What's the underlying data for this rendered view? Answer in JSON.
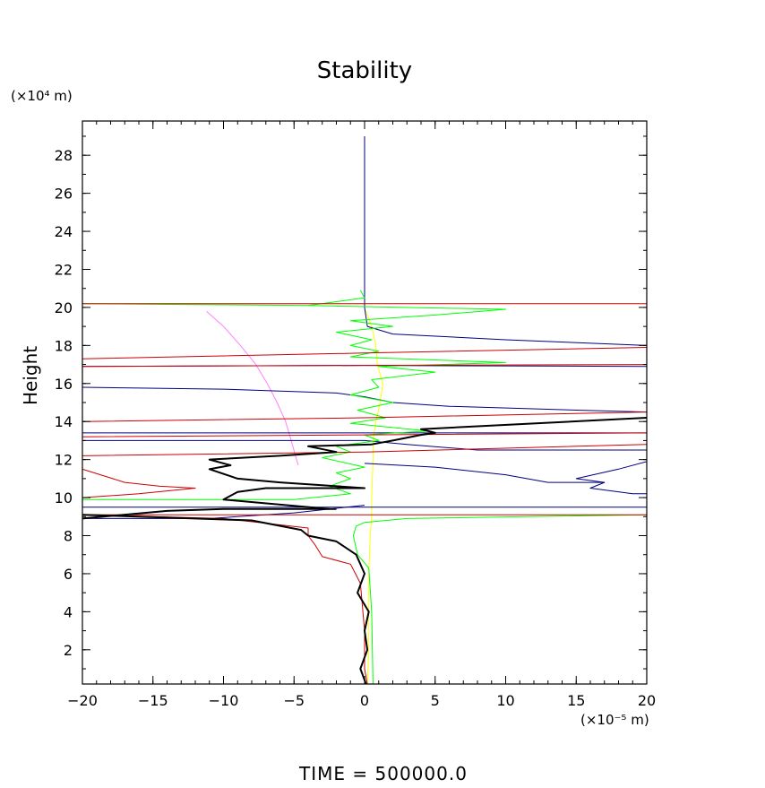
{
  "chart_data": {
    "type": "line",
    "title": "Stability",
    "ylabel": "Height",
    "y_scale_label": "(×10⁴ m)",
    "x_scale_label": "(×10⁻⁵ m)",
    "footer": "TIME  =  500000.0",
    "xlim": [
      -20,
      20
    ],
    "ylim": [
      0.2,
      29.8
    ],
    "xticks": [
      -20,
      -15,
      -10,
      -5,
      0,
      5,
      10,
      15,
      20
    ],
    "yticks": [
      2,
      4,
      6,
      8,
      10,
      12,
      14,
      16,
      18,
      20,
      22,
      24,
      26,
      28
    ],
    "grid": false,
    "series": [
      {
        "color": "#ff80ff",
        "width": 1,
        "points": [
          [
            -4.7,
            11.7
          ],
          [
            -4.9,
            12.2
          ],
          [
            -5.2,
            13
          ],
          [
            -5.6,
            14
          ],
          [
            -6.2,
            15
          ],
          [
            -6.9,
            16
          ],
          [
            -7.7,
            17
          ],
          [
            -8.8,
            18
          ],
          [
            -10,
            19
          ],
          [
            -11.2,
            19.8
          ]
        ]
      },
      {
        "color": "#ffff00",
        "width": 1,
        "points": [
          [
            0.2,
            0.2
          ],
          [
            0.3,
            2
          ],
          [
            0.3,
            4
          ],
          [
            0.3,
            6
          ],
          [
            0.4,
            8
          ],
          [
            0.5,
            9
          ],
          [
            0.5,
            10
          ],
          [
            0.6,
            12
          ],
          [
            0.6,
            13
          ],
          [
            0.8,
            14
          ],
          [
            1.1,
            15
          ],
          [
            1.3,
            16
          ],
          [
            0.9,
            17
          ],
          [
            0.8,
            18
          ],
          [
            0.5,
            19
          ],
          [
            0.1,
            19.8
          ]
        ]
      },
      {
        "color": "#000080",
        "width": 1,
        "points": [
          [
            0,
            29
          ],
          [
            0,
            20
          ],
          [
            0.2,
            19
          ],
          [
            2,
            18.6
          ],
          [
            10,
            18.3
          ],
          [
            20,
            18
          ]
        ]
      },
      {
        "color": "#000080",
        "width": 1,
        "points": [
          [
            -20,
            15.8
          ],
          [
            -10,
            15.7
          ],
          [
            -2,
            15.5
          ],
          [
            0,
            15.3
          ],
          [
            2,
            15
          ],
          [
            6,
            14.8
          ],
          [
            15,
            14.6
          ],
          [
            20,
            14.5
          ]
        ]
      },
      {
        "color": "#000080",
        "width": 1,
        "points": [
          [
            -20,
            13
          ],
          [
            -10,
            13
          ],
          [
            0,
            13
          ],
          [
            3,
            12.8
          ],
          [
            8,
            12.5
          ],
          [
            20,
            12.5
          ]
        ]
      },
      {
        "color": "#000080",
        "width": 1,
        "points": [
          [
            0,
            11.8
          ],
          [
            5,
            11.6
          ],
          [
            10,
            11.2
          ],
          [
            13,
            10.8
          ],
          [
            17,
            10.8
          ],
          [
            16,
            10.5
          ],
          [
            19,
            10.2
          ],
          [
            20,
            10.2
          ]
        ]
      },
      {
        "color": "#000080",
        "width": 1,
        "points": [
          [
            20,
            11.9
          ],
          [
            18,
            11.5
          ],
          [
            15,
            11
          ],
          [
            17,
            10.8
          ]
        ]
      },
      {
        "color": "#000080",
        "width": 1,
        "points": [
          [
            0,
            9.6
          ],
          [
            -5,
            9.2
          ],
          [
            -11,
            8.9
          ],
          [
            -20,
            8.9
          ]
        ]
      },
      {
        "color": "#000080",
        "width": 1,
        "points": [
          [
            -20,
            16.9
          ],
          [
            0,
            16.95
          ],
          [
            20,
            16.9
          ]
        ]
      },
      {
        "color": "#000080",
        "width": 1,
        "points": [
          [
            -20,
            13.4
          ],
          [
            0,
            13.4
          ],
          [
            20,
            13.4
          ]
        ]
      },
      {
        "color": "#000080",
        "width": 1,
        "points": [
          [
            -20,
            9.5
          ],
          [
            0,
            9.5
          ],
          [
            20,
            9.5
          ]
        ]
      },
      {
        "color": "#00ff00",
        "width": 1,
        "points": [
          [
            0.6,
            0.2
          ],
          [
            0.5,
            4
          ],
          [
            0.3,
            6.3
          ],
          [
            -0.5,
            7
          ],
          [
            -0.8,
            8
          ],
          [
            -0.6,
            8.5
          ],
          [
            0,
            8.7
          ],
          [
            3,
            8.9
          ],
          [
            20,
            9.1
          ]
        ]
      },
      {
        "color": "#00ff00",
        "width": 1,
        "points": [
          [
            -20,
            9.9
          ],
          [
            -5,
            9.9
          ],
          [
            -1,
            10.2
          ],
          [
            -2.5,
            10.6
          ],
          [
            -1,
            11
          ],
          [
            -2,
            11.3
          ],
          [
            0,
            11.6
          ],
          [
            -3,
            12.1
          ],
          [
            -1,
            12.4
          ],
          [
            -2,
            12.7
          ],
          [
            1,
            13
          ],
          [
            0,
            13.3
          ],
          [
            4.5,
            13.5
          ],
          [
            -1,
            13.9
          ],
          [
            1.5,
            14.2
          ],
          [
            -0.5,
            14.6
          ],
          [
            2,
            15
          ],
          [
            -1,
            15.4
          ],
          [
            1,
            15.8
          ],
          [
            0.5,
            16.2
          ],
          [
            5,
            16.6
          ],
          [
            1,
            16.9
          ],
          [
            10,
            17.1
          ],
          [
            -1,
            17.4
          ],
          [
            1,
            17.7
          ],
          [
            -1,
            18
          ],
          [
            0.5,
            18.3
          ],
          [
            -2,
            18.7
          ],
          [
            2,
            19
          ],
          [
            -1,
            19.3
          ],
          [
            5,
            19.6
          ],
          [
            10,
            19.9
          ],
          [
            -4,
            20.1
          ],
          [
            -20,
            20.2
          ]
        ]
      },
      {
        "color": "#00ff00",
        "width": 1,
        "points": [
          [
            -4,
            20.1
          ],
          [
            0,
            20.5
          ],
          [
            -0.3,
            20.9
          ]
        ]
      },
      {
        "color": "#cc0000",
        "width": 1,
        "points": [
          [
            -20,
            20.2
          ],
          [
            0,
            20.2
          ],
          [
            20,
            20.2
          ]
        ]
      },
      {
        "color": "#cc0000",
        "width": 1,
        "points": [
          [
            -20,
            17.3
          ],
          [
            0,
            17.6
          ],
          [
            20,
            17.9
          ]
        ]
      },
      {
        "color": "#cc0000",
        "width": 1,
        "points": [
          [
            -20,
            16.9
          ],
          [
            0,
            16.95
          ],
          [
            20,
            17
          ]
        ]
      },
      {
        "color": "#cc0000",
        "width": 1,
        "points": [
          [
            -20,
            14
          ],
          [
            0,
            14.2
          ],
          [
            20,
            14.5
          ]
        ]
      },
      {
        "color": "#cc0000",
        "width": 1,
        "points": [
          [
            -20,
            13.2
          ],
          [
            0,
            13.3
          ],
          [
            20,
            13.4
          ]
        ]
      },
      {
        "color": "#cc0000",
        "width": 1,
        "points": [
          [
            -20,
            12.2
          ],
          [
            0,
            12.4
          ],
          [
            20,
            12.8
          ]
        ]
      },
      {
        "color": "#cc0000",
        "width": 1,
        "points": [
          [
            -20,
            11.5
          ],
          [
            -17,
            10.8
          ],
          [
            -14.5,
            10.6
          ],
          [
            -12,
            10.5
          ],
          [
            -16,
            10.2
          ],
          [
            -20,
            10
          ]
        ]
      },
      {
        "color": "#cc0000",
        "width": 1,
        "points": [
          [
            0.2,
            0.2
          ],
          [
            0,
            1
          ],
          [
            0,
            3
          ],
          [
            -0.3,
            5.5
          ],
          [
            -1,
            6.5
          ],
          [
            -3,
            6.9
          ],
          [
            -3.5,
            7.5
          ],
          [
            -4,
            8
          ],
          [
            -4,
            8.4
          ],
          [
            -10,
            8.9
          ],
          [
            -20,
            9.1
          ]
        ]
      },
      {
        "color": "#cc0000",
        "width": 1,
        "points": [
          [
            -20,
            9.1
          ],
          [
            0,
            9.1
          ],
          [
            20,
            9.1
          ]
        ]
      },
      {
        "color": "#000000",
        "width": 2,
        "points": [
          [
            0.1,
            0.2
          ],
          [
            -0.3,
            1
          ],
          [
            0.2,
            2
          ],
          [
            0,
            3
          ],
          [
            0.3,
            4
          ],
          [
            -0.5,
            5
          ],
          [
            0,
            6
          ],
          [
            -0.6,
            7
          ],
          [
            -2,
            7.7
          ],
          [
            -4,
            8
          ],
          [
            -4.5,
            8.3
          ],
          [
            -8,
            8.8
          ],
          [
            -20,
            9.1
          ]
        ]
      },
      {
        "color": "#000000",
        "width": 2,
        "points": [
          [
            -20,
            8.9
          ],
          [
            -14,
            9.3
          ],
          [
            -10,
            9.4
          ],
          [
            -2,
            9.4
          ]
        ]
      },
      {
        "color": "#000000",
        "width": 2,
        "points": [
          [
            -2.5,
            9.4
          ],
          [
            -10,
            9.9
          ],
          [
            -9,
            10.3
          ],
          [
            -7,
            10.5
          ],
          [
            0,
            10.5
          ],
          [
            -6,
            10.8
          ],
          [
            -9,
            11
          ],
          [
            -11,
            11.5
          ],
          [
            -9.5,
            11.7
          ],
          [
            -11,
            12
          ],
          [
            -6,
            12.2
          ],
          [
            -2,
            12.4
          ],
          [
            -4,
            12.7
          ],
          [
            0.5,
            12.8
          ],
          [
            2,
            13
          ],
          [
            4,
            13.3
          ],
          [
            5,
            13.4
          ],
          [
            4,
            13.6
          ],
          [
            20,
            14.2
          ]
        ]
      }
    ]
  }
}
